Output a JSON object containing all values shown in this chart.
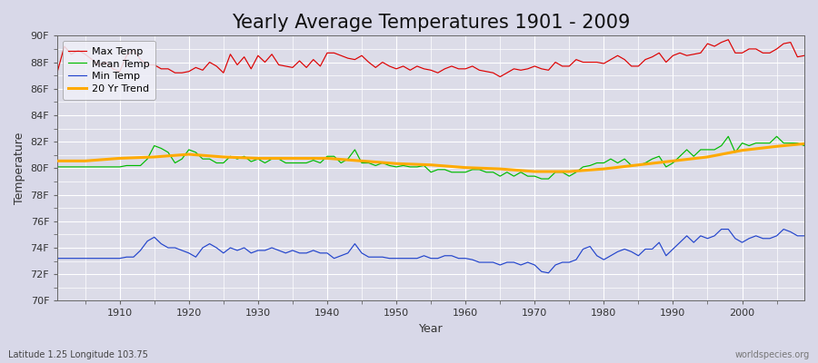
{
  "title": "Yearly Average Temperatures 1901 - 2009",
  "xlabel": "Year",
  "ylabel": "Temperature",
  "subtitle_lat": "Latitude 1.25 Longitude 103.75",
  "watermark": "worldspecies.org",
  "years": [
    1901,
    1902,
    1903,
    1904,
    1905,
    1906,
    1907,
    1908,
    1909,
    1910,
    1911,
    1912,
    1913,
    1914,
    1915,
    1916,
    1917,
    1918,
    1919,
    1920,
    1921,
    1922,
    1923,
    1924,
    1925,
    1926,
    1927,
    1928,
    1929,
    1930,
    1931,
    1932,
    1933,
    1934,
    1935,
    1936,
    1937,
    1938,
    1939,
    1940,
    1941,
    1942,
    1943,
    1944,
    1945,
    1946,
    1947,
    1948,
    1949,
    1950,
    1951,
    1952,
    1953,
    1954,
    1955,
    1956,
    1957,
    1958,
    1959,
    1960,
    1961,
    1962,
    1963,
    1964,
    1965,
    1966,
    1967,
    1968,
    1969,
    1970,
    1971,
    1972,
    1973,
    1974,
    1975,
    1976,
    1977,
    1978,
    1979,
    1980,
    1981,
    1982,
    1983,
    1984,
    1985,
    1986,
    1987,
    1988,
    1989,
    1990,
    1991,
    1992,
    1993,
    1994,
    1995,
    1996,
    1997,
    1998,
    1999,
    2000,
    2001,
    2002,
    2003,
    2004,
    2005,
    2006,
    2007,
    2008,
    2009
  ],
  "max_temp": [
    87.3,
    89.2,
    88.6,
    88.9,
    88.6,
    88.2,
    87.8,
    88.0,
    87.5,
    87.3,
    88.5,
    88.9,
    88.2,
    87.8,
    87.8,
    87.5,
    87.5,
    87.2,
    87.2,
    87.3,
    87.6,
    87.4,
    88.0,
    87.7,
    87.2,
    88.6,
    87.8,
    88.4,
    87.5,
    88.5,
    88.0,
    88.6,
    87.8,
    87.7,
    87.6,
    88.1,
    87.6,
    88.2,
    87.7,
    88.7,
    88.7,
    88.5,
    88.3,
    88.2,
    88.5,
    88.0,
    87.6,
    88.0,
    87.7,
    87.5,
    87.7,
    87.4,
    87.7,
    87.5,
    87.4,
    87.2,
    87.5,
    87.7,
    87.5,
    87.5,
    87.7,
    87.4,
    87.3,
    87.2,
    86.9,
    87.2,
    87.5,
    87.4,
    87.5,
    87.7,
    87.5,
    87.4,
    88.0,
    87.7,
    87.7,
    88.2,
    88.0,
    88.0,
    88.0,
    87.9,
    88.2,
    88.5,
    88.2,
    87.7,
    87.7,
    88.2,
    88.4,
    88.7,
    88.0,
    88.5,
    88.7,
    88.5,
    88.6,
    88.7,
    89.4,
    89.2,
    89.5,
    89.7,
    88.7,
    88.7,
    89.0,
    89.0,
    88.7,
    88.7,
    89.0,
    89.4,
    89.5,
    88.4,
    88.5
  ],
  "mean_temp": [
    80.1,
    80.1,
    80.1,
    80.1,
    80.1,
    80.1,
    80.1,
    80.1,
    80.1,
    80.1,
    80.2,
    80.2,
    80.2,
    80.7,
    81.7,
    81.5,
    81.2,
    80.4,
    80.7,
    81.4,
    81.2,
    80.7,
    80.7,
    80.4,
    80.4,
    80.9,
    80.7,
    80.9,
    80.5,
    80.7,
    80.4,
    80.7,
    80.7,
    80.4,
    80.4,
    80.4,
    80.4,
    80.6,
    80.4,
    80.9,
    80.9,
    80.4,
    80.7,
    81.4,
    80.4,
    80.4,
    80.2,
    80.4,
    80.2,
    80.1,
    80.2,
    80.1,
    80.1,
    80.2,
    79.7,
    79.9,
    79.9,
    79.7,
    79.7,
    79.7,
    79.9,
    79.9,
    79.7,
    79.7,
    79.4,
    79.7,
    79.4,
    79.7,
    79.4,
    79.4,
    79.2,
    79.2,
    79.7,
    79.7,
    79.4,
    79.7,
    80.1,
    80.2,
    80.4,
    80.4,
    80.7,
    80.4,
    80.7,
    80.2,
    80.2,
    80.4,
    80.7,
    80.9,
    80.1,
    80.4,
    80.9,
    81.4,
    80.9,
    81.4,
    81.4,
    81.4,
    81.7,
    82.4,
    81.2,
    81.9,
    81.7,
    81.9,
    81.9,
    81.9,
    82.4,
    81.9,
    81.9,
    81.9,
    81.7
  ],
  "min_temp": [
    73.2,
    73.2,
    73.2,
    73.2,
    73.2,
    73.2,
    73.2,
    73.2,
    73.2,
    73.2,
    73.3,
    73.3,
    73.8,
    74.5,
    74.8,
    74.3,
    74.0,
    74.0,
    73.8,
    73.6,
    73.3,
    74.0,
    74.3,
    74.0,
    73.6,
    74.0,
    73.8,
    74.0,
    73.6,
    73.8,
    73.8,
    74.0,
    73.8,
    73.6,
    73.8,
    73.6,
    73.6,
    73.8,
    73.6,
    73.6,
    73.2,
    73.4,
    73.6,
    74.3,
    73.6,
    73.3,
    73.3,
    73.3,
    73.2,
    73.2,
    73.2,
    73.2,
    73.2,
    73.4,
    73.2,
    73.2,
    73.4,
    73.4,
    73.2,
    73.2,
    73.1,
    72.9,
    72.9,
    72.9,
    72.7,
    72.9,
    72.9,
    72.7,
    72.9,
    72.7,
    72.2,
    72.1,
    72.7,
    72.9,
    72.9,
    73.1,
    73.9,
    74.1,
    73.4,
    73.1,
    73.4,
    73.7,
    73.9,
    73.7,
    73.4,
    73.9,
    73.9,
    74.4,
    73.4,
    73.9,
    74.4,
    74.9,
    74.4,
    74.9,
    74.7,
    74.9,
    75.4,
    75.4,
    74.7,
    74.4,
    74.7,
    74.9,
    74.7,
    74.7,
    74.9,
    75.4,
    75.2,
    74.9,
    74.9
  ],
  "trend_years": [
    1901,
    1905,
    1910,
    1915,
    1920,
    1925,
    1930,
    1935,
    1940,
    1945,
    1950,
    1955,
    1960,
    1965,
    1970,
    1975,
    1980,
    1985,
    1990,
    1995,
    2000,
    2005,
    2009
  ],
  "trend_values": [
    80.55,
    80.55,
    80.75,
    80.85,
    81.05,
    80.85,
    80.75,
    80.75,
    80.75,
    80.55,
    80.35,
    80.25,
    80.05,
    79.95,
    79.75,
    79.75,
    79.95,
    80.25,
    80.55,
    80.85,
    81.35,
    81.65,
    81.85
  ],
  "ylim": [
    70,
    90
  ],
  "yticks": [
    70,
    72,
    74,
    76,
    78,
    80,
    82,
    84,
    86,
    88,
    90
  ],
  "ytick_labels": [
    "70F",
    "72F",
    "74F",
    "76F",
    "78F",
    "80F",
    "82F",
    "84F",
    "86F",
    "88F",
    "90F"
  ],
  "xlim": [
    1901,
    2009
  ],
  "xticks": [
    1910,
    1920,
    1930,
    1940,
    1950,
    1960,
    1970,
    1980,
    1990,
    2000
  ],
  "bg_color": "#d8d8e8",
  "plot_bg_color": "#dcdce8",
  "grid_color": "#ffffff",
  "max_color": "#dd0000",
  "mean_color": "#00bb00",
  "min_color": "#2244cc",
  "trend_color": "#ffaa00",
  "title_fontsize": 15,
  "axis_label_fontsize": 9,
  "tick_fontsize": 8,
  "legend_fontsize": 8
}
